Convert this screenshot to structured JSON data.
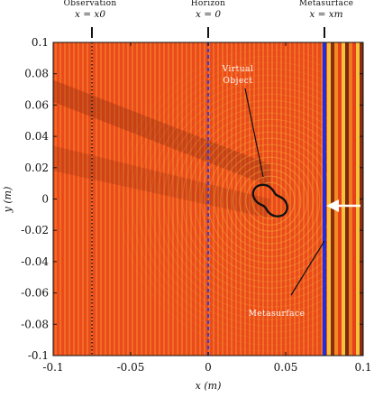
{
  "chart_data": {
    "type": "heatmap",
    "xlabel": "x (m)",
    "ylabel": "y (m)",
    "xlim": [
      -0.1,
      0.1
    ],
    "ylim": [
      -0.1,
      0.1
    ],
    "xticks": [
      "-0.1",
      "-0.05",
      "0",
      "0.05",
      "0.1"
    ],
    "xtick_values": [
      -0.1,
      -0.05,
      0,
      0.05,
      0.1
    ],
    "yticks": [
      "0.1",
      "0.08",
      "0.06",
      "0.04",
      "0.02",
      "0",
      "-0.02",
      "-0.04",
      "-0.06",
      "-0.08",
      "-0.1"
    ],
    "ytick_values": [
      0.1,
      0.08,
      0.06,
      0.04,
      0.02,
      0,
      -0.02,
      -0.04,
      -0.06,
      -0.08,
      -0.1
    ],
    "colormap": [
      "#7a2a10",
      "#e8401a",
      "#f07a1e",
      "#f7c23a"
    ],
    "vertical_lines": [
      {
        "id": "observation",
        "x": -0.075,
        "style": "dotted",
        "color": "#222222"
      },
      {
        "id": "horizon",
        "x": 0,
        "style": "dashed",
        "color": "#2f3fe0"
      },
      {
        "id": "metasurface",
        "x": 0.075,
        "style": "solid",
        "color": "#1f2ee0"
      }
    ],
    "top_labels": [
      {
        "id": "observation",
        "x": -0.075,
        "title": "Observation",
        "subtitle": "x = x0"
      },
      {
        "id": "horizon",
        "x": 0,
        "title": "Horizon",
        "subtitle": "x = 0"
      },
      {
        "id": "metasurface",
        "x": 0.075,
        "title": "Metasurface",
        "subtitle": "x = xm"
      }
    ],
    "annotations": {
      "virtual_object": {
        "line1": "Virtual",
        "line2": "Object",
        "center": [
          0.04,
          -0.001
        ]
      },
      "metasurface": {
        "text": "Metasurface"
      }
    },
    "incident_arrow": {
      "y": 0.0,
      "color": "#ffffff"
    }
  }
}
